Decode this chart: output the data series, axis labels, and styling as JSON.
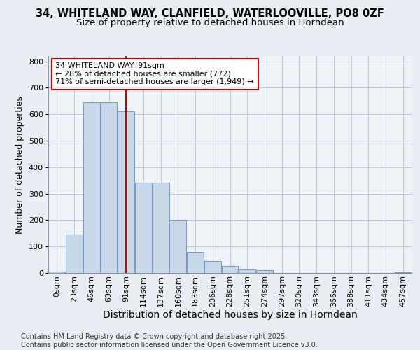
{
  "title_line1": "34, WHITELAND WAY, CLANFIELD, WATERLOOVILLE, PO8 0ZF",
  "title_line2": "Size of property relative to detached houses in Horndean",
  "xlabel": "Distribution of detached houses by size in Horndean",
  "ylabel": "Number of detached properties",
  "bar_labels": [
    "0sqm",
    "23sqm",
    "46sqm",
    "69sqm",
    "91sqm",
    "114sqm",
    "137sqm",
    "160sqm",
    "183sqm",
    "206sqm",
    "228sqm",
    "251sqm",
    "274sqm",
    "297sqm",
    "320sqm",
    "343sqm",
    "366sqm",
    "388sqm",
    "411sqm",
    "434sqm",
    "457sqm"
  ],
  "bar_values": [
    5,
    145,
    645,
    645,
    610,
    340,
    340,
    200,
    80,
    45,
    27,
    12,
    10,
    0,
    0,
    0,
    0,
    0,
    0,
    0,
    3
  ],
  "bar_color": "#c8d8e8",
  "bar_edge_color": "#6090c0",
  "vline_x": 4,
  "vline_color": "#cc0000",
  "annotation_text": "34 WHITELAND WAY: 91sqm\n← 28% of detached houses are smaller (772)\n71% of semi-detached houses are larger (1,949) →",
  "annotation_box_color": "#ffffff",
  "annotation_box_edge": "#cc0000",
  "ylim": [
    0,
    820
  ],
  "yticks": [
    0,
    100,
    200,
    300,
    400,
    500,
    600,
    700,
    800
  ],
  "grid_color": "#b8c8d8",
  "background_color": "#e8eef4",
  "plot_bg_color": "#eef3f8",
  "footer_text": "Contains HM Land Registry data © Crown copyright and database right 2025.\nContains public sector information licensed under the Open Government Licence v3.0.",
  "title_fontsize": 10.5,
  "subtitle_fontsize": 9.5,
  "xlabel_fontsize": 10,
  "ylabel_fontsize": 9,
  "tick_fontsize": 8,
  "annotation_fontsize": 8,
  "footer_fontsize": 7
}
